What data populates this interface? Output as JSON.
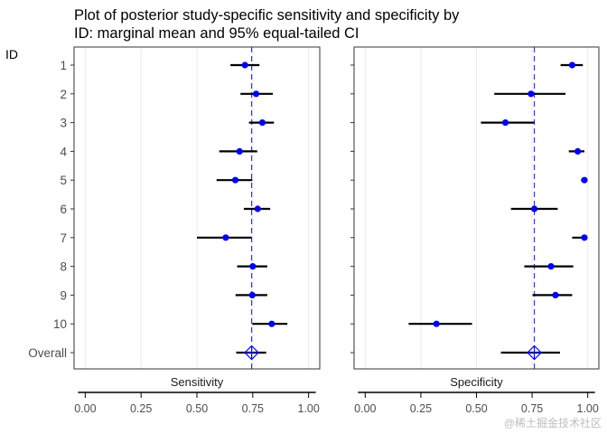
{
  "title": {
    "line1": "Plot of posterior study-specific  sensitivity and specificity by",
    "line2": "ID: marginal mean and 95% equal-tailed CI"
  },
  "y_axis_label": "ID",
  "watermark": "@稀土掘金技术社区",
  "colors": {
    "point": "#0000ff",
    "reference_line": "#3333ff",
    "interval": "#000000",
    "panel_border": "#333333",
    "grid": "#ebebeb"
  },
  "chart_data": [
    {
      "type": "scatter",
      "panel": "sensitivity",
      "xlabel": "Sensitivity",
      "xlim": [
        0,
        1
      ],
      "xticks": [
        "0.00",
        "0.25",
        "0.50",
        "0.75",
        "1.00"
      ],
      "categories": [
        "1",
        "2",
        "3",
        "4",
        "5",
        "6",
        "7",
        "8",
        "9",
        "10",
        "Overall"
      ],
      "series": [
        {
          "mean": [
            0.715,
            0.765,
            0.793,
            0.691,
            0.672,
            0.772,
            0.629,
            0.75,
            0.748,
            0.835,
            0.745
          ],
          "lower": [
            0.65,
            0.695,
            0.733,
            0.6,
            0.588,
            0.71,
            0.5,
            0.68,
            0.673,
            0.748,
            0.676
          ],
          "upper": [
            0.78,
            0.84,
            0.845,
            0.77,
            0.748,
            0.828,
            0.745,
            0.815,
            0.815,
            0.905,
            0.81
          ]
        }
      ],
      "reference_value": 0.745
    },
    {
      "type": "scatter",
      "panel": "specificity",
      "xlabel": "Specificity",
      "xlim": [
        0,
        1
      ],
      "xticks": [
        "0.00",
        "0.25",
        "0.50",
        "0.75",
        "1.00"
      ],
      "categories": [
        "1",
        "2",
        "3",
        "4",
        "5",
        "6",
        "7",
        "8",
        "9",
        "10",
        "Overall"
      ],
      "series": [
        {
          "mean": [
            0.93,
            0.745,
            0.63,
            0.955,
            0.985,
            0.76,
            0.985,
            0.835,
            0.855,
            0.32,
            0.76
          ],
          "lower": [
            0.878,
            0.58,
            0.52,
            0.915,
            0.97,
            0.655,
            0.93,
            0.715,
            0.752,
            0.195,
            0.61
          ],
          "upper": [
            0.978,
            0.9,
            0.76,
            0.985,
            0.998,
            0.865,
            0.998,
            0.935,
            0.93,
            0.48,
            0.875
          ]
        }
      ],
      "reference_value": 0.76
    }
  ]
}
